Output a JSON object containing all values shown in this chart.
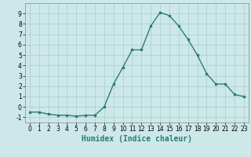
{
  "x": [
    0,
    1,
    2,
    3,
    4,
    5,
    6,
    7,
    8,
    9,
    10,
    11,
    12,
    13,
    14,
    15,
    16,
    17,
    18,
    19,
    20,
    21,
    22,
    23
  ],
  "y": [
    -0.5,
    -0.5,
    -0.7,
    -0.8,
    -0.8,
    -0.9,
    -0.8,
    -0.8,
    0.0,
    2.2,
    3.8,
    5.5,
    5.5,
    7.8,
    9.1,
    8.8,
    7.8,
    6.5,
    5.0,
    3.2,
    2.2,
    2.2,
    1.2,
    1.0
  ],
  "line_color": "#2d7d6e",
  "marker": "s",
  "marker_size": 2.0,
  "linewidth": 1.0,
  "xlabel": "Humidex (Indice chaleur)",
  "xlim": [
    -0.5,
    23.5
  ],
  "ylim": [
    -1.5,
    10.0
  ],
  "yticks": [
    -1,
    0,
    1,
    2,
    3,
    4,
    5,
    6,
    7,
    8,
    9
  ],
  "xticks": [
    0,
    1,
    2,
    3,
    4,
    5,
    6,
    7,
    8,
    9,
    10,
    11,
    12,
    13,
    14,
    15,
    16,
    17,
    18,
    19,
    20,
    21,
    22,
    23
  ],
  "bg_color": "#cce8e8",
  "grid_color": "#aacccc",
  "tick_label_fontsize": 5.5,
  "xlabel_fontsize": 7.0
}
